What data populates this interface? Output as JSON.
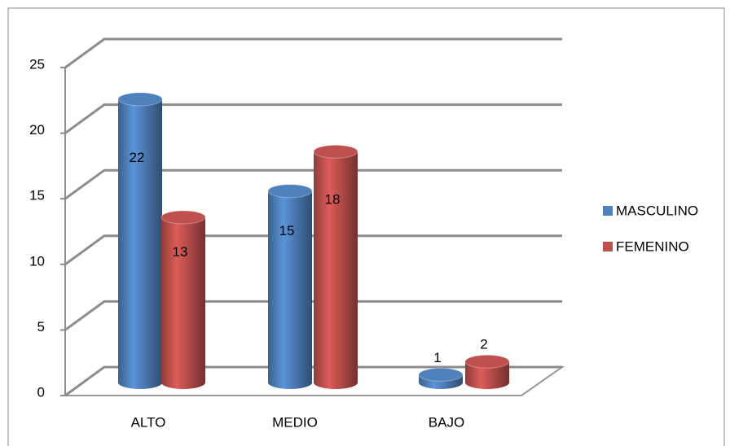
{
  "chart_data": {
    "type": "bar",
    "categories": [
      "ALTO",
      "MEDIO",
      "BAJO"
    ],
    "series": [
      {
        "name": "MASCULINO",
        "color": "#4f81bd",
        "values": [
          22,
          15,
          1
        ]
      },
      {
        "name": "FEMENINO",
        "color": "#c0504d",
        "values": [
          13,
          18,
          2
        ]
      }
    ],
    "ylim": [
      0,
      25
    ],
    "yticks": [
      0,
      5,
      10,
      15,
      20,
      25
    ],
    "grid": true,
    "legend": "right"
  }
}
